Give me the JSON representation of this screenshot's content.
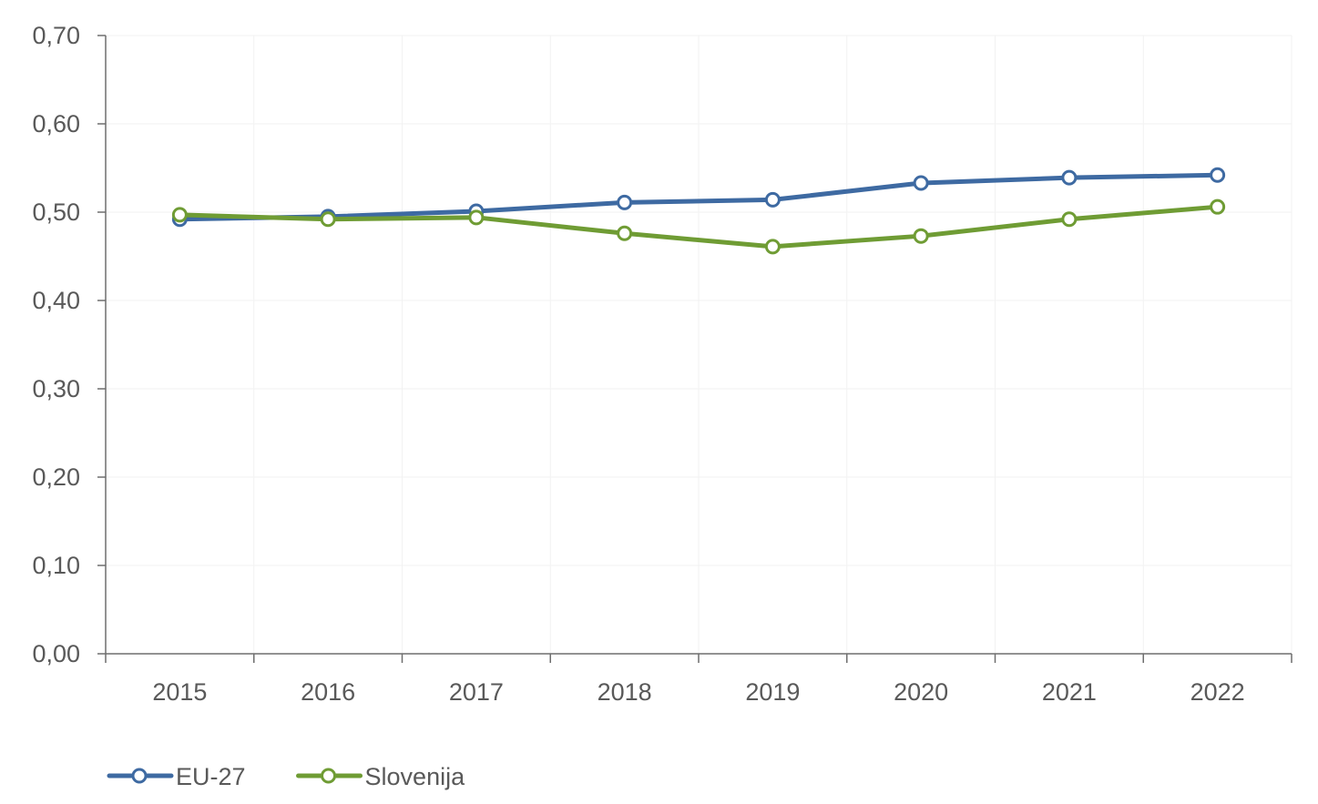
{
  "chart_data": {
    "type": "line",
    "title": "",
    "xlabel": "",
    "ylabel": "",
    "x": [
      "2015",
      "2016",
      "2017",
      "2018",
      "2019",
      "2020",
      "2021",
      "2022"
    ],
    "y_ticks": [
      "0,00",
      "0,10",
      "0,20",
      "0,30",
      "0,40",
      "0,50",
      "0,60",
      "0,70"
    ],
    "ylim": [
      0,
      0.7
    ],
    "grid": true,
    "legend_position": "bottom-left",
    "series": [
      {
        "name": "EU-27",
        "color": "#3e6aa2",
        "values": [
          0.492,
          0.495,
          0.501,
          0.511,
          0.514,
          0.533,
          0.539,
          0.542
        ]
      },
      {
        "name": "Slovenija",
        "color": "#6f9c34",
        "values": [
          0.497,
          0.492,
          0.494,
          0.476,
          0.461,
          0.473,
          0.492,
          0.506
        ]
      }
    ]
  }
}
